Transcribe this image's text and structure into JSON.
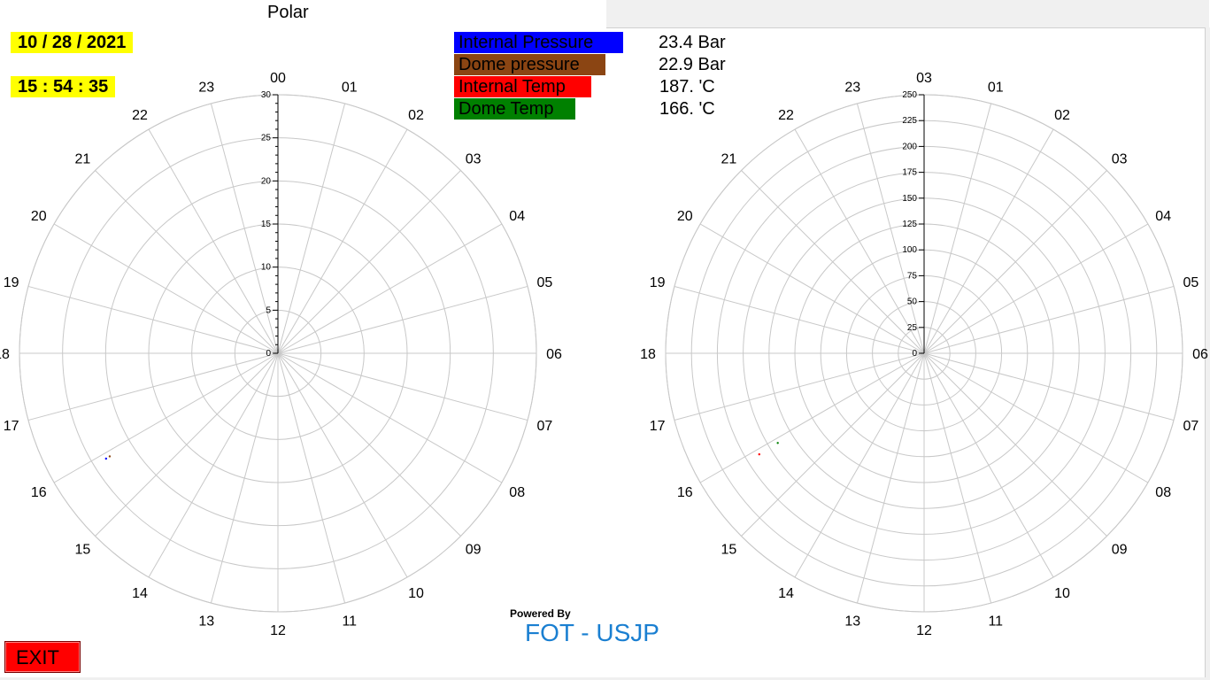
{
  "title": "Polar",
  "date": "10 / 28 / 2021",
  "time": "15 : 54 : 35",
  "legend": [
    {
      "label": "Internal Pressure",
      "color": "#0000ff",
      "value": "23.4 Bar"
    },
    {
      "label": "Dome pressure",
      "color": "#8b4513",
      "value": "22.9 Bar"
    },
    {
      "label": "Internal Temp",
      "color": "#ff0000",
      "value": "187. 'C"
    },
    {
      "label": "Dome Temp",
      "color": "#008000",
      "value": "166. 'C"
    }
  ],
  "powered_by": "Powered By",
  "brand": "FOT - USJP",
  "exit_label": "EXIT",
  "chart_data": [
    {
      "type": "polar",
      "name": "pressure",
      "angular_labels": [
        "00",
        "01",
        "02",
        "03",
        "04",
        "05",
        "06",
        "07",
        "08",
        "09",
        "10",
        "11",
        "12",
        "13",
        "14",
        "15",
        "16",
        "17",
        "18",
        "19",
        "20",
        "21",
        "22",
        "23"
      ],
      "radial_ticks": [
        "0",
        "5",
        "10",
        "15",
        "20",
        "25",
        "30"
      ],
      "rlim": [
        0,
        30
      ],
      "grid": true,
      "series": [
        {
          "color": "#0000ff",
          "points": [
            {
              "hour": 15.9,
              "r": 23.4
            }
          ]
        },
        {
          "color": "#8b4513",
          "points": [
            {
              "hour": 15.9,
              "r": 22.9
            }
          ]
        }
      ]
    },
    {
      "type": "polar",
      "name": "temperature",
      "angular_labels": [
        "03",
        "01",
        "02",
        "03",
        "04",
        "05",
        "06",
        "07",
        "08",
        "09",
        "10",
        "11",
        "12",
        "13",
        "14",
        "15",
        "16",
        "17",
        "18",
        "19",
        "20",
        "21",
        "22",
        "23"
      ],
      "radial_ticks": [
        "0",
        "25",
        "50",
        "75",
        "100",
        "125",
        "150",
        "175",
        "200",
        "225",
        "250"
      ],
      "rlim": [
        0,
        250
      ],
      "grid": true,
      "series": [
        {
          "color": "#ff0000",
          "points": [
            {
              "hour": 15.9,
              "r": 187
            }
          ]
        },
        {
          "color": "#008000",
          "points": [
            {
              "hour": 15.9,
              "r": 166
            }
          ]
        }
      ]
    }
  ]
}
